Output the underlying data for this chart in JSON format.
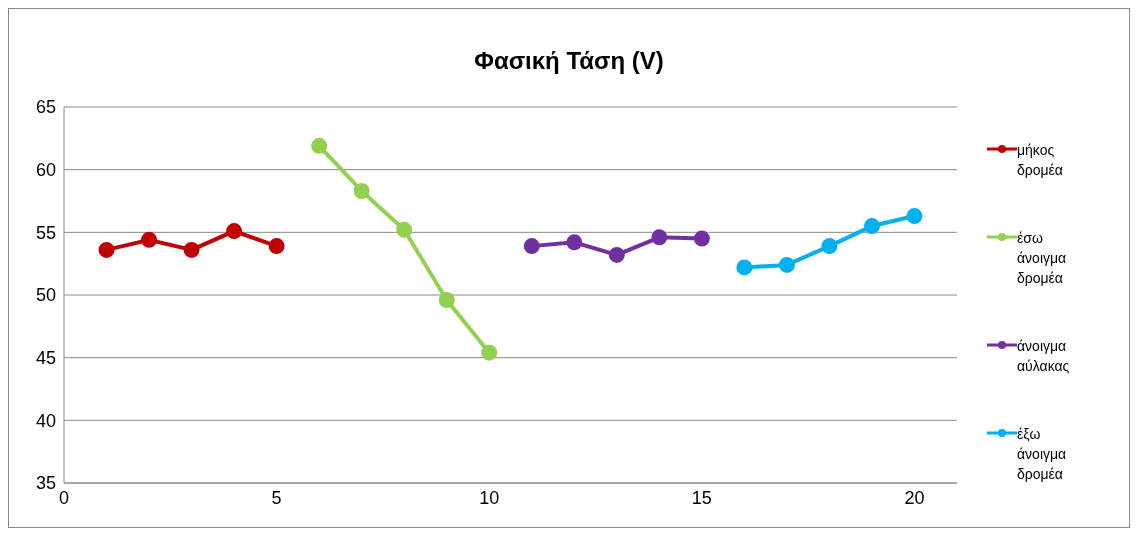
{
  "chart_data": {
    "type": "line",
    "title": "Φασική Τάση (V)",
    "xlim": [
      0,
      21
    ],
    "xticks": [
      0,
      5,
      10,
      15,
      20
    ],
    "ylim": [
      35,
      65
    ],
    "yticks": [
      35,
      40,
      45,
      50,
      55,
      60,
      65
    ],
    "grid": "y",
    "legend": "right",
    "marker": "circle",
    "line_style": "solid",
    "series": [
      {
        "name": "μήκος δρομέα",
        "color": "#c00000",
        "x": [
          1,
          2,
          3,
          4,
          5
        ],
        "values": [
          53.6,
          54.4,
          53.6,
          55.1,
          53.9
        ]
      },
      {
        "name": "έσω άνοιγμα δρομέα",
        "color": "#92d050",
        "x": [
          6,
          7,
          8,
          9,
          10
        ],
        "values": [
          61.9,
          58.3,
          55.2,
          49.6,
          45.4
        ]
      },
      {
        "name": "άνοιγμα αύλακας",
        "color": "#7030a0",
        "x": [
          11,
          12,
          13,
          14,
          15
        ],
        "values": [
          53.9,
          54.2,
          53.2,
          54.6,
          54.5
        ]
      },
      {
        "name": "έξω άνοιγμα δρομέα",
        "color": "#00b0f0",
        "x": [
          16,
          17,
          18,
          19,
          20
        ],
        "values": [
          52.2,
          52.4,
          53.9,
          55.5,
          56.3
        ]
      }
    ]
  }
}
